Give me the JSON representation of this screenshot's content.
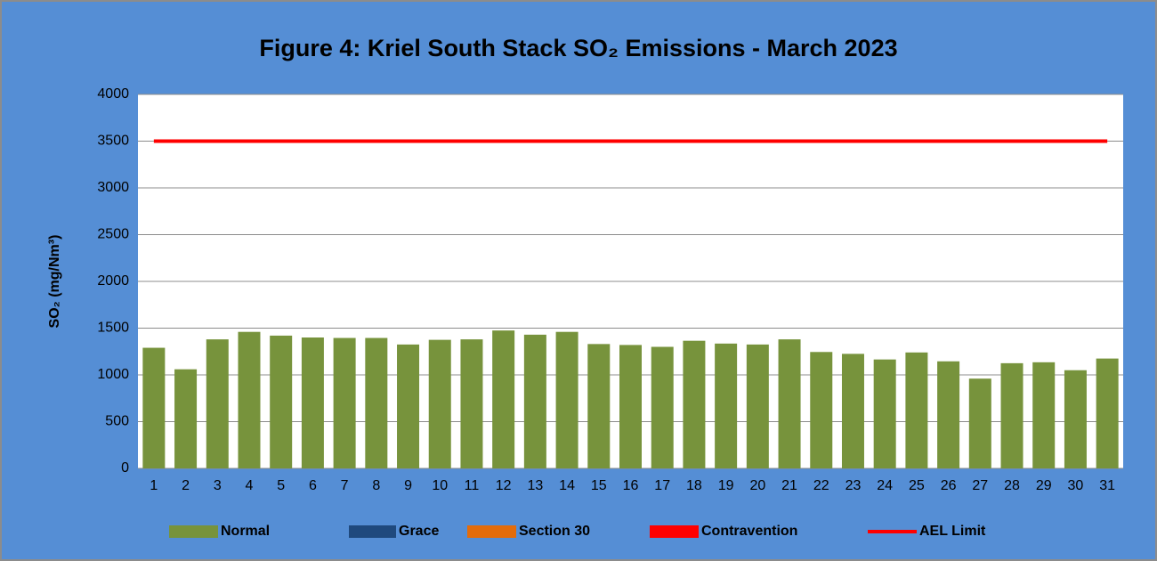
{
  "chart_data": {
    "type": "bar",
    "title": "Figure 4: Kriel South Stack SO₂ Emissions -  March 2023",
    "y_label": "SO₂ (mg/Nm³)",
    "categories": [
      1,
      2,
      3,
      4,
      5,
      6,
      7,
      8,
      9,
      10,
      11,
      12,
      13,
      14,
      15,
      16,
      17,
      18,
      19,
      20,
      21,
      22,
      23,
      24,
      25,
      26,
      27,
      28,
      29,
      30,
      31
    ],
    "series": [
      {
        "name": "Normal",
        "color": "#77933c",
        "type": "bar",
        "values": [
          1290,
          1060,
          1380,
          1460,
          1420,
          1400,
          1395,
          1395,
          1325,
          1375,
          1380,
          1475,
          1430,
          1460,
          1330,
          1320,
          1300,
          1365,
          1335,
          1325,
          1380,
          1245,
          1225,
          1165,
          1240,
          1145,
          960,
          1125,
          1135,
          1050,
          1175
        ]
      },
      {
        "name": "Grace",
        "color": "#1f497d",
        "type": "bar",
        "values": [
          null,
          null,
          null,
          null,
          null,
          null,
          null,
          null,
          null,
          null,
          null,
          null,
          null,
          null,
          null,
          null,
          null,
          null,
          null,
          null,
          null,
          null,
          null,
          null,
          null,
          null,
          null,
          null,
          null,
          null,
          null
        ]
      },
      {
        "name": "Section 30",
        "color": "#e46c0a",
        "type": "bar",
        "values": [
          null,
          null,
          null,
          null,
          null,
          null,
          null,
          null,
          null,
          null,
          null,
          null,
          null,
          null,
          null,
          null,
          null,
          null,
          null,
          null,
          null,
          null,
          null,
          null,
          null,
          null,
          null,
          null,
          null,
          null,
          null
        ]
      },
      {
        "name": "Contravention",
        "color": "#ff0000",
        "type": "bar",
        "values": [
          null,
          null,
          null,
          null,
          null,
          null,
          null,
          null,
          null,
          null,
          null,
          null,
          null,
          null,
          null,
          null,
          null,
          null,
          null,
          null,
          null,
          null,
          null,
          null,
          null,
          null,
          null,
          null,
          null,
          null,
          null
        ]
      },
      {
        "name": "AEL Limit",
        "color": "#ff0000",
        "type": "line",
        "values": [
          3500,
          3500,
          3500,
          3500,
          3500,
          3500,
          3500,
          3500,
          3500,
          3500,
          3500,
          3500,
          3500,
          3500,
          3500,
          3500,
          3500,
          3500,
          3500,
          3500,
          3500,
          3500,
          3500,
          3500,
          3500,
          3500,
          3500,
          3500,
          3500,
          3500,
          3500
        ]
      }
    ],
    "ylim": [
      0,
      4000
    ],
    "yticks": [
      0,
      500,
      1000,
      1500,
      2000,
      2500,
      3000,
      3500,
      4000
    ],
    "grid": true,
    "legend": "bottom"
  }
}
